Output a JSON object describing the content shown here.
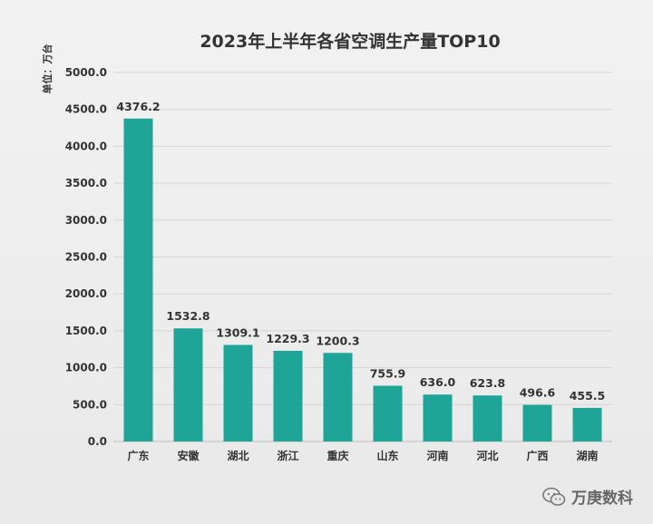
{
  "chart_data": {
    "type": "bar",
    "title": "2023年上半年各省空调生产量TOP10",
    "ylabel": "单位：万台",
    "xlabel": "",
    "ylim": [
      0,
      5000
    ],
    "yticks": [
      0,
      500,
      1000,
      1500,
      2000,
      2500,
      3000,
      3500,
      4000,
      4500,
      5000
    ],
    "categories": [
      "广东",
      "安徽",
      "湖北",
      "浙江",
      "重庆",
      "山东",
      "河南",
      "河北",
      "广西",
      "湖南"
    ],
    "values": [
      4376.2,
      1532.8,
      1309.1,
      1229.3,
      1200.3,
      755.9,
      636.0,
      623.8,
      496.6,
      455.5
    ],
    "bar_color": "#1fa598",
    "grid": true
  },
  "watermark": {
    "text": "万庚数科",
    "icon": "wechat-icon"
  }
}
